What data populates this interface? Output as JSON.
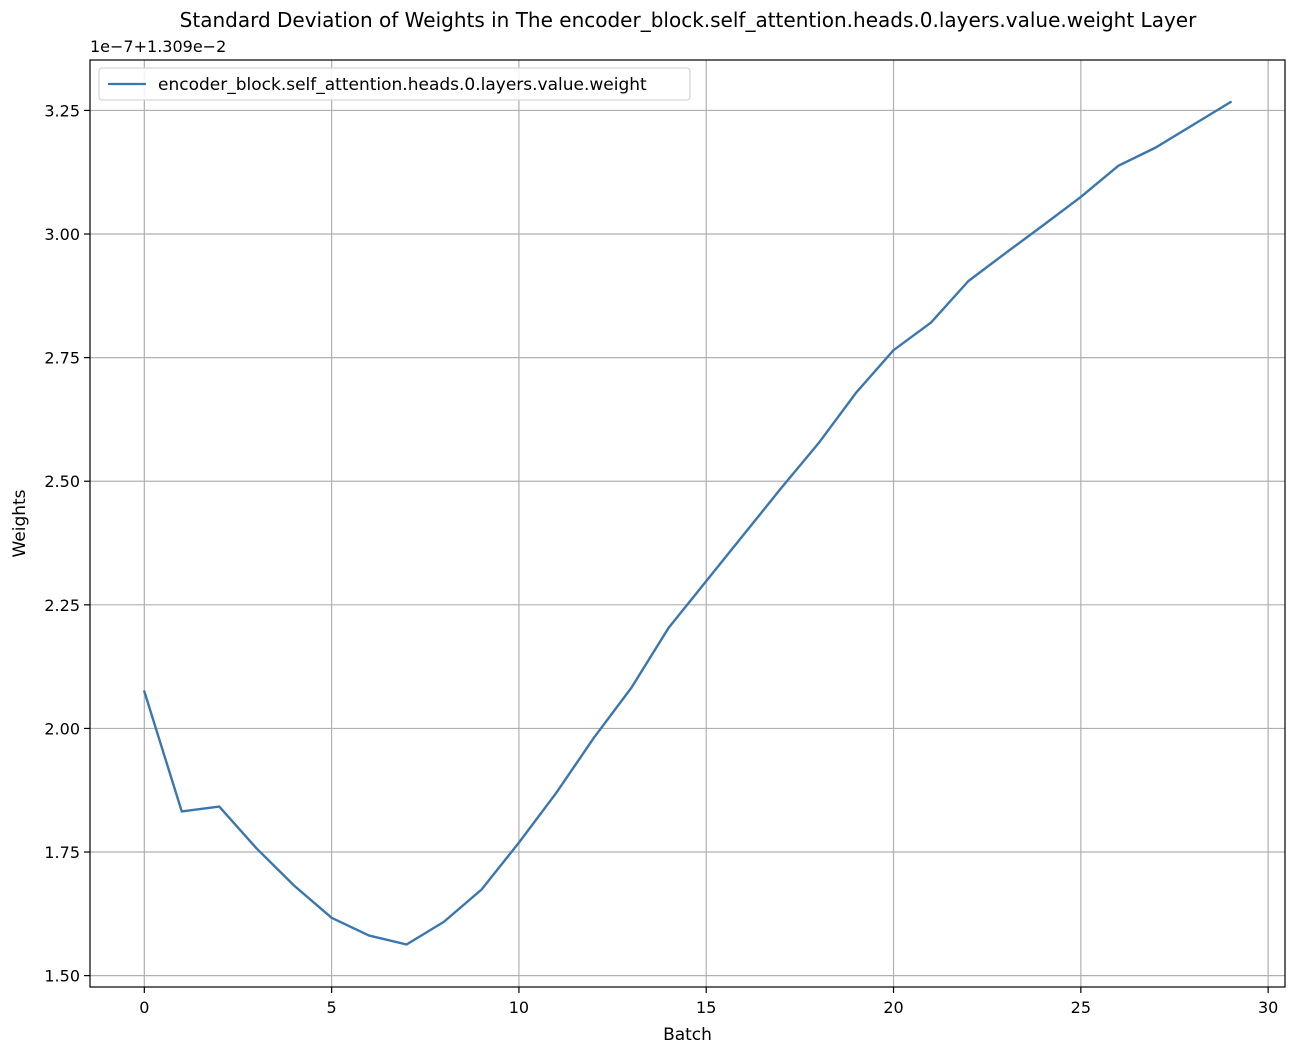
{
  "chart_data": {
    "type": "line",
    "title": "Standard Deviation of Weights in The encoder_block.self_attention.heads.0.layers.value.weight Layer",
    "offset_label": "1e−7+1.309e−2",
    "xlabel": "Batch",
    "ylabel": "Weights",
    "xlim": [
      -1.45,
      30.45
    ],
    "ylim": [
      1.477,
      3.352
    ],
    "xticks": [
      0,
      5,
      10,
      15,
      20,
      25,
      30
    ],
    "xtick_labels": [
      "0",
      "5",
      "10",
      "15",
      "20",
      "25",
      "30"
    ],
    "yticks": [
      1.5,
      1.75,
      2.0,
      2.25,
      2.5,
      2.75,
      3.0,
      3.25
    ],
    "ytick_labels": [
      "1.50",
      "1.75",
      "2.00",
      "2.25",
      "2.50",
      "2.75",
      "3.00",
      "3.25"
    ],
    "grid": true,
    "legend": "upper left",
    "series": [
      {
        "name": "encoder_block.self_attention.heads.0.layers.value.weight",
        "color": "#3a76af",
        "x": [
          0,
          1,
          2,
          3,
          4,
          5,
          6,
          7,
          8,
          9,
          10,
          11,
          12,
          13,
          14,
          15,
          16,
          17,
          18,
          19,
          20,
          21,
          22,
          23,
          24,
          25,
          26,
          27,
          28,
          29
        ],
        "y": [
          2.075,
          1.832,
          1.842,
          1.757,
          1.682,
          1.617,
          1.581,
          1.563,
          1.609,
          1.674,
          1.769,
          1.87,
          1.981,
          2.082,
          2.204,
          2.298,
          2.392,
          2.486,
          2.577,
          2.679,
          2.765,
          2.821,
          2.905,
          2.962,
          3.018,
          3.075,
          3.138,
          3.175,
          3.221,
          3.267
        ]
      }
    ]
  }
}
